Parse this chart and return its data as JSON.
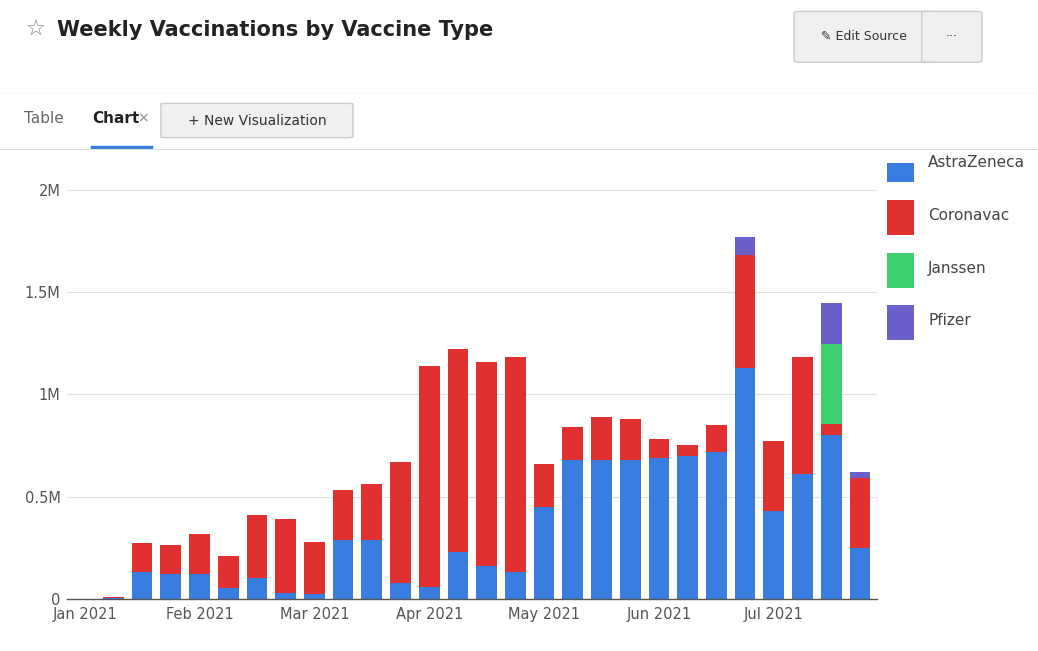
{
  "title": "Weekly Vaccinations by Vaccine Type",
  "header_bg": "#f5f6f7",
  "plot_bg": "#ffffff",
  "outer_bg": "#ffffff",
  "colors": {
    "AstraZeneca": "#3a7de0",
    "Coronavac": "#e03030",
    "Janssen": "#3ecf6e",
    "Pfizer": "#6b5fc9"
  },
  "AstraZeneca": [
    2000,
    5000,
    130000,
    120000,
    120000,
    55000,
    100000,
    30000,
    25000,
    290000,
    290000,
    80000,
    60000,
    230000,
    160000,
    130000,
    450000,
    680000,
    680000,
    680000,
    690000,
    700000,
    720000,
    1130000,
    430000,
    610000,
    800000,
    250000
  ],
  "Coronavac": [
    0,
    5000,
    145000,
    145000,
    195000,
    155000,
    310000,
    360000,
    255000,
    240000,
    270000,
    590000,
    1080000,
    990000,
    1000000,
    1050000,
    210000,
    160000,
    210000,
    200000,
    90000,
    50000,
    130000,
    550000,
    340000,
    570000,
    55000,
    340000
  ],
  "Janssen": [
    0,
    0,
    0,
    0,
    0,
    0,
    0,
    0,
    0,
    0,
    0,
    0,
    0,
    0,
    0,
    0,
    0,
    0,
    0,
    0,
    0,
    0,
    0,
    0,
    0,
    0,
    390000,
    0
  ],
  "Pfizer": [
    0,
    0,
    0,
    0,
    0,
    0,
    0,
    0,
    0,
    0,
    0,
    0,
    0,
    0,
    0,
    0,
    0,
    0,
    0,
    0,
    0,
    0,
    0,
    90000,
    0,
    0,
    200000,
    30000
  ],
  "xtick_positions": [
    0,
    4,
    8,
    12,
    16,
    20,
    24
  ],
  "xtick_labels": [
    "Jan 2021",
    "Feb 2021",
    "Mar 2021",
    "Apr 2021",
    "May 2021",
    "Jun 2021",
    "Jul 2021"
  ],
  "ylim": [
    0,
    2100000
  ],
  "yticks": [
    0,
    500000,
    1000000,
    1500000,
    2000000
  ],
  "ytick_labels": [
    "0",
    "0.5M",
    "1M",
    "1.5M",
    "2M"
  ]
}
